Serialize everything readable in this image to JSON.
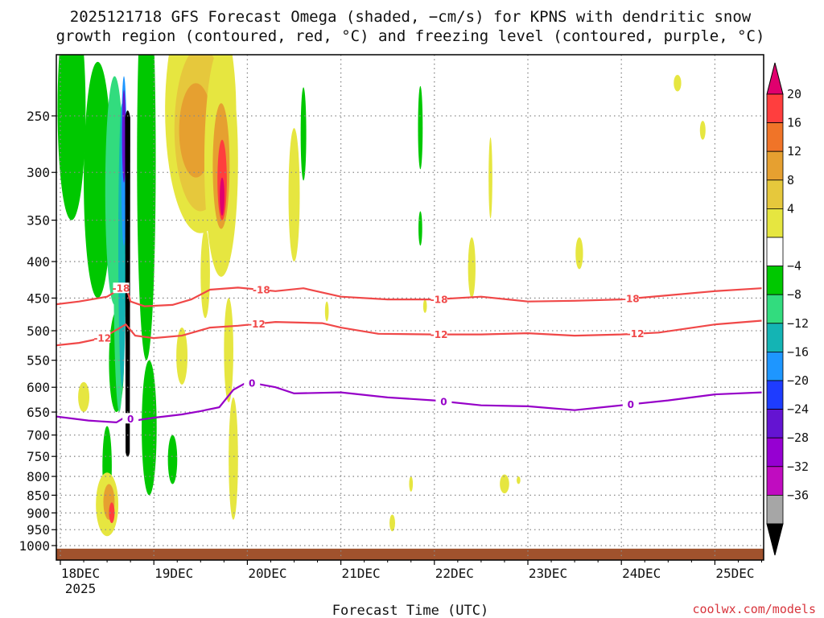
{
  "chart_data": {
    "type": "heatmap",
    "title_lines": [
      "2025121718 GFS Forecast Omega (shaded, −cm/s) for KPNS with dendritic snow",
      "growth region (contoured, red, °C) and freezing level (contoured, purple, °C)"
    ],
    "xlabel": "Forecast Time (UTC)",
    "x_ticks": [
      "18DEC",
      "19DEC",
      "20DEC",
      "21DEC",
      "22DEC",
      "23DEC",
      "24DEC",
      "25DEC"
    ],
    "x_year": "2025",
    "x_range_days": [
      -0.1,
      7.5
    ],
    "y_ticks": [
      250,
      300,
      350,
      400,
      450,
      500,
      550,
      600,
      650,
      700,
      750,
      800,
      850,
      900,
      950,
      1000
    ],
    "y_range_hpa": [
      1030,
      200
    ],
    "colorbar": {
      "labels": [
        "20",
        "16",
        "12",
        "8",
        "4",
        "−4",
        "−8",
        "−12",
        "−16",
        "−20",
        "−24",
        "−28",
        "−32",
        "−36"
      ],
      "colors": [
        "#e0006e",
        "#ff3e3e",
        "#f07428",
        "#e6a030",
        "#e6c83c",
        "#e6e640",
        "#ffffff",
        "#00c800",
        "#32dc7e",
        "#14b4b4",
        "#1e96ff",
        "#1e3cff",
        "#6414d2",
        "#9600d2",
        "#c00cc0",
        "#a6a6a6",
        "#000000"
      ]
    },
    "contours": [
      {
        "name": "dgz-18",
        "label": "-18",
        "color": "#f04848",
        "points": [
          [
            -0.1,
            460
          ],
          [
            0.2,
            455
          ],
          [
            0.5,
            448
          ],
          [
            0.7,
            432
          ],
          [
            0.75,
            455
          ],
          [
            0.9,
            462
          ],
          [
            1.2,
            460
          ],
          [
            1.4,
            452
          ],
          [
            1.6,
            438
          ],
          [
            1.9,
            435
          ],
          [
            2.3,
            440
          ],
          [
            2.6,
            436
          ],
          [
            3.0,
            448
          ],
          [
            3.5,
            452
          ],
          [
            4.0,
            452
          ],
          [
            4.5,
            448
          ],
          [
            5.0,
            455
          ],
          [
            5.5,
            454
          ],
          [
            6.0,
            452
          ],
          [
            6.5,
            446
          ],
          [
            7.0,
            440
          ],
          [
            7.5,
            436
          ]
        ],
        "labels": [
          [
            0.65,
            "-18"
          ],
          [
            2.15,
            "-18"
          ],
          [
            4.05,
            "-18"
          ],
          [
            6.1,
            "-18"
          ]
        ]
      },
      {
        "name": "dgz-12",
        "label": "-12",
        "color": "#f04848",
        "points": [
          [
            -0.1,
            525
          ],
          [
            0.2,
            520
          ],
          [
            0.45,
            512
          ],
          [
            0.7,
            490
          ],
          [
            0.8,
            508
          ],
          [
            1.0,
            512
          ],
          [
            1.3,
            508
          ],
          [
            1.6,
            495
          ],
          [
            1.9,
            492
          ],
          [
            2.3,
            486
          ],
          [
            2.8,
            488
          ],
          [
            3.0,
            495
          ],
          [
            3.4,
            505
          ],
          [
            4.0,
            506
          ],
          [
            4.5,
            506
          ],
          [
            5.0,
            504
          ],
          [
            5.5,
            508
          ],
          [
            6.0,
            506
          ],
          [
            6.4,
            503
          ],
          [
            7.0,
            490
          ],
          [
            7.5,
            484
          ]
        ],
        "labels": [
          [
            0.45,
            "-12"
          ],
          [
            2.1,
            "-12"
          ],
          [
            4.05,
            "-12"
          ],
          [
            6.15,
            "-12"
          ]
        ]
      },
      {
        "name": "freezing-0",
        "label": "0",
        "color": "#9600c8",
        "points": [
          [
            -0.1,
            658
          ],
          [
            0.3,
            668
          ],
          [
            0.6,
            672
          ],
          [
            0.7,
            660
          ],
          [
            0.8,
            668
          ],
          [
            1.0,
            662
          ],
          [
            1.3,
            655
          ],
          [
            1.5,
            648
          ],
          [
            1.7,
            640
          ],
          [
            1.85,
            605
          ],
          [
            2.0,
            590
          ],
          [
            2.3,
            600
          ],
          [
            2.5,
            612
          ],
          [
            3.0,
            610
          ],
          [
            3.5,
            620
          ],
          [
            4.0,
            626
          ],
          [
            4.5,
            636
          ],
          [
            5.0,
            638
          ],
          [
            5.5,
            646
          ],
          [
            6.0,
            636
          ],
          [
            6.5,
            626
          ],
          [
            7.0,
            614
          ],
          [
            7.5,
            610
          ]
        ],
        "labels": [
          [
            0.75,
            "0"
          ],
          [
            2.05,
            "0"
          ],
          [
            4.1,
            "0"
          ],
          [
            6.1,
            "0"
          ]
        ]
      }
    ],
    "shaded_blobs": [
      {
        "color_index": 7,
        "cx": 0.12,
        "p": 260,
        "rx": 0.15,
        "rp": 90
      },
      {
        "color_index": 7,
        "cx": 0.4,
        "p": 330,
        "rx": 0.15,
        "rp": 120
      },
      {
        "color_index": 8,
        "cx": 0.58,
        "p": 340,
        "rx": 0.1,
        "rp": 120
      },
      {
        "color_index": 7,
        "cx": 0.6,
        "p": 560,
        "rx": 0.08,
        "rp": 90
      },
      {
        "color_index": 7,
        "cx": 0.5,
        "p": 780,
        "rx": 0.05,
        "rp": 100
      },
      {
        "color_index": 7,
        "cx": 0.92,
        "p": 350,
        "rx": 0.1,
        "rp": 200
      },
      {
        "color_index": 7,
        "cx": 0.95,
        "p": 700,
        "rx": 0.08,
        "rp": 150
      },
      {
        "color_index": 8,
        "cx": 0.63,
        "p": 450,
        "rx": 0.06,
        "rp": 200
      },
      {
        "color_index": 9,
        "cx": 0.66,
        "p": 420,
        "rx": 0.04,
        "rp": 180
      },
      {
        "color_index": 10,
        "cx": 0.68,
        "p": 300,
        "rx": 0.03,
        "rp": 80
      },
      {
        "color_index": 12,
        "cx": 0.68,
        "p": 270,
        "rx": 0.02,
        "rp": 40
      },
      {
        "color_index": 7,
        "cx": 2.6,
        "p": 268,
        "rx": 0.03,
        "rp": 40
      },
      {
        "color_index": 7,
        "cx": 1.2,
        "p": 760,
        "rx": 0.05,
        "rp": 60
      },
      {
        "color_index": 5,
        "cx": 1.5,
        "p": 265,
        "rx": 0.38,
        "rp": 100
      },
      {
        "color_index": 4,
        "cx": 1.5,
        "p": 270,
        "rx": 0.28,
        "rp": 70
      },
      {
        "color_index": 3,
        "cx": 1.45,
        "p": 265,
        "rx": 0.18,
        "rp": 40
      },
      {
        "color_index": 5,
        "cx": 1.72,
        "p": 310,
        "rx": 0.18,
        "rp": 110
      },
      {
        "color_index": 3,
        "cx": 1.72,
        "p": 300,
        "rx": 0.09,
        "rp": 60
      },
      {
        "color_index": 1,
        "cx": 1.73,
        "p": 310,
        "rx": 0.05,
        "rp": 40
      },
      {
        "color_index": 0,
        "cx": 1.73,
        "p": 325,
        "rx": 0.025,
        "rp": 20
      },
      {
        "color_index": 5,
        "cx": 1.8,
        "p": 540,
        "rx": 0.05,
        "rp": 90
      },
      {
        "color_index": 5,
        "cx": 1.3,
        "p": 545,
        "rx": 0.06,
        "rp": 50
      },
      {
        "color_index": 5,
        "cx": 1.55,
        "p": 420,
        "rx": 0.05,
        "rp": 60
      },
      {
        "color_index": 5,
        "cx": 1.85,
        "p": 770,
        "rx": 0.05,
        "rp": 150
      },
      {
        "color_index": 5,
        "cx": 0.25,
        "p": 620,
        "rx": 0.06,
        "rp": 30
      },
      {
        "color_index": 5,
        "cx": 0.5,
        "p": 880,
        "rx": 0.12,
        "rp": 90
      },
      {
        "color_index": 3,
        "cx": 0.52,
        "p": 870,
        "rx": 0.06,
        "rp": 50
      },
      {
        "color_index": 1,
        "cx": 0.55,
        "p": 900,
        "rx": 0.03,
        "rp": 30
      },
      {
        "color_index": 5,
        "cx": 2.5,
        "p": 330,
        "rx": 0.06,
        "rp": 70
      },
      {
        "color_index": 5,
        "cx": 4.4,
        "p": 410,
        "rx": 0.04,
        "rp": 40
      },
      {
        "color_index": 5,
        "cx": 4.6,
        "p": 308,
        "rx": 0.02,
        "rp": 40
      },
      {
        "color_index": 5,
        "cx": 5.55,
        "p": 390,
        "rx": 0.04,
        "rp": 20
      },
      {
        "color_index": 5,
        "cx": 6.6,
        "p": 225,
        "rx": 0.04,
        "rp": 6
      },
      {
        "color_index": 5,
        "cx": 6.87,
        "p": 262,
        "rx": 0.03,
        "rp": 8
      },
      {
        "color_index": 5,
        "cx": 4.75,
        "p": 820,
        "rx": 0.05,
        "rp": 25
      },
      {
        "color_index": 5,
        "cx": 3.55,
        "p": 930,
        "rx": 0.03,
        "rp": 25
      },
      {
        "color_index": 5,
        "cx": 4.9,
        "p": 810,
        "rx": 0.02,
        "rp": 10
      },
      {
        "color_index": 5,
        "cx": 3.75,
        "p": 820,
        "rx": 0.02,
        "rp": 20
      },
      {
        "color_index": 5,
        "cx": 2.85,
        "p": 470,
        "rx": 0.02,
        "rp": 15
      },
      {
        "color_index": 5,
        "cx": 3.9,
        "p": 462,
        "rx": 0.02,
        "rp": 10
      },
      {
        "color_index": 7,
        "cx": 3.85,
        "p": 262,
        "rx": 0.025,
        "rp": 35
      },
      {
        "color_index": 7,
        "cx": 3.85,
        "p": 360,
        "rx": 0.02,
        "rp": 20
      }
    ],
    "black_core": {
      "x": 0.72,
      "p_top": 245,
      "p_bottom": 740,
      "halfwidth_days": 0.028
    },
    "ground_level_hpa": 1010
  },
  "credit": "coolwx.com/models",
  "colors": {
    "grid": "#8a8a8a",
    "ground": "#a0522d",
    "axis": "#000000",
    "credit": "#d8343c"
  }
}
